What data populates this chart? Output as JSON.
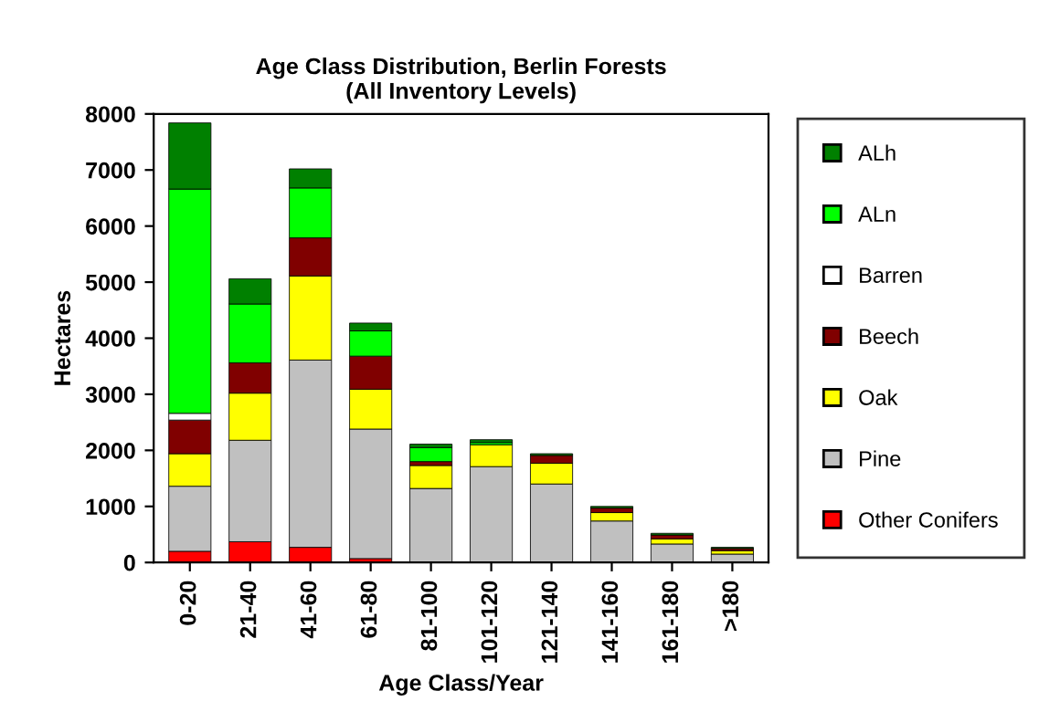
{
  "chart_data": {
    "type": "bar",
    "title": "Age Class Distribution, Berlin Forests\n(All Inventory Levels)",
    "xlabel": "Age Class/Year",
    "ylabel": "Hectares",
    "categories": [
      "0-20",
      "21-40",
      "41-60",
      "61-80",
      "81-100",
      "101-120",
      "121-140",
      "141-160",
      "161-180",
      ">180"
    ],
    "stacked": true,
    "ylim": [
      0,
      8000
    ],
    "yticks": [
      0,
      1000,
      2000,
      3000,
      4000,
      5000,
      6000,
      7000,
      8000
    ],
    "grid": false,
    "legend": "right",
    "series": [
      {
        "name": "Other Conifers",
        "color": "#ff0000",
        "values": [
          200,
          370,
          270,
          70,
          null,
          null,
          null,
          null,
          null,
          null
        ]
      },
      {
        "name": "Pine",
        "color": "#c0c0c0",
        "values": [
          1160,
          1810,
          3340,
          2310,
          1320,
          1710,
          1400,
          740,
          330,
          150
        ]
      },
      {
        "name": "Oak",
        "color": "#ffff00",
        "values": [
          580,
          840,
          1500,
          710,
          410,
          390,
          370,
          150,
          90,
          60
        ]
      },
      {
        "name": "Beech",
        "color": "#800000",
        "values": [
          600,
          540,
          680,
          590,
          70,
          null,
          140,
          80,
          70,
          40
        ]
      },
      {
        "name": "Barren",
        "color": "#ffffff",
        "values": [
          120,
          null,
          null,
          null,
          null,
          null,
          null,
          null,
          null,
          null
        ]
      },
      {
        "name": "ALn",
        "color": "#00ff00",
        "values": [
          4000,
          1050,
          890,
          450,
          250,
          40,
          null,
          null,
          null,
          null
        ]
      },
      {
        "name": "ALh",
        "color": "#008000",
        "values": [
          1180,
          450,
          340,
          140,
          60,
          50,
          30,
          30,
          30,
          20
        ]
      }
    ]
  }
}
